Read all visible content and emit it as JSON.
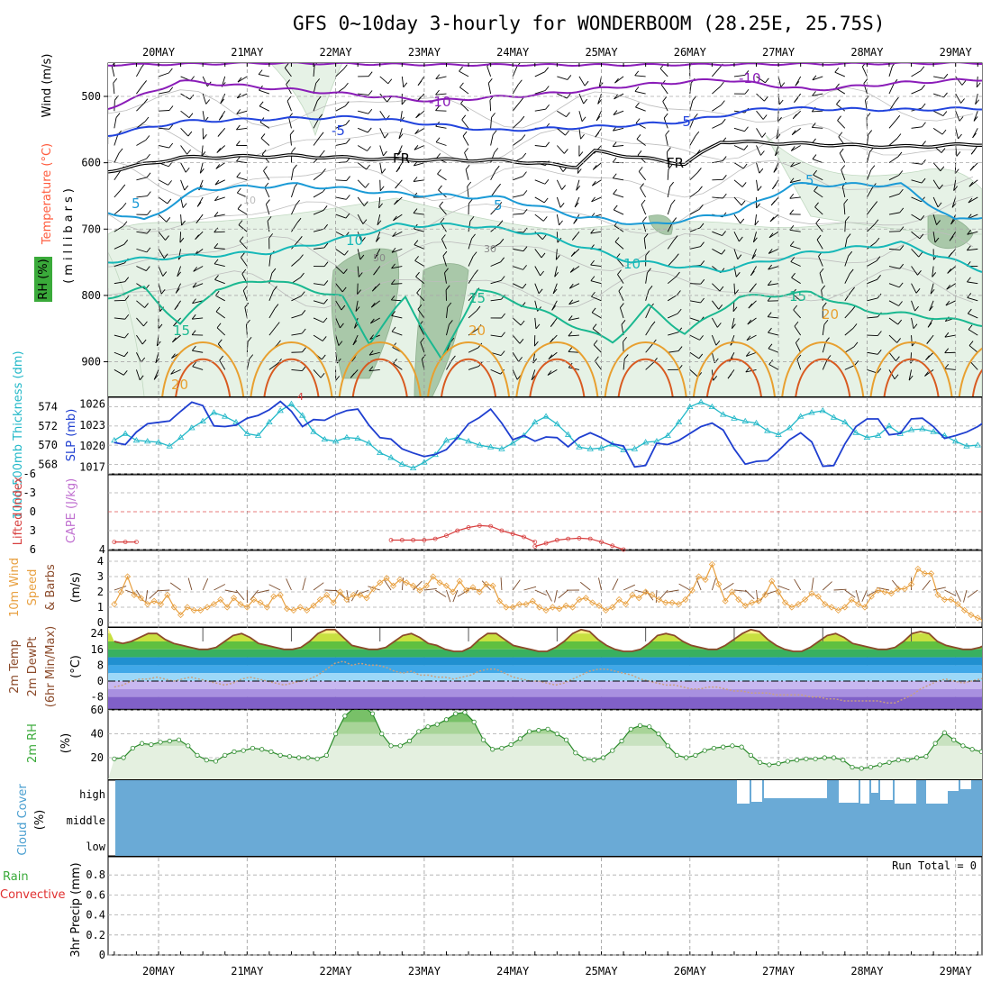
{
  "title": "GFS 0~10day 3-hourly for WONDERBOOM (28.25E, 25.75S)",
  "dates": [
    "20MAY",
    "21MAY",
    "22MAY",
    "23MAY",
    "24MAY",
    "25MAY",
    "26MAY",
    "27MAY",
    "28MAY",
    "29MAY"
  ],
  "run_total_label": "Run Total = 0",
  "panels": {
    "upper": {
      "labels": {
        "wind": "Wind (m/s)",
        "temp": "Temperature (°C)",
        "pressure": "(millibars)",
        "rh": "RH (%)"
      },
      "yticks": [
        "500",
        "600",
        "700",
        "800",
        "900"
      ],
      "contour_labels": [
        "-10",
        "-10",
        "-5",
        "-5",
        "FR",
        "FR",
        "5",
        "5",
        "5",
        "10",
        "10",
        "15",
        "15",
        "15",
        "20",
        "20",
        "20",
        "10",
        "50",
        "30",
        "4"
      ]
    },
    "thickness": {
      "labels": {
        "thickness": "1000-500mb Thickness (dm)",
        "slp": "SLP (mb)"
      },
      "left_ticks": [
        "574",
        "572",
        "570",
        "568"
      ],
      "right_ticks": [
        "1026",
        "1023",
        "1020",
        "1017"
      ]
    },
    "lifted": {
      "labels": {
        "li": "Lifted Index",
        "cape": "CAPE (J/kg)"
      },
      "left_ticks": [
        "-6",
        "-3",
        "0",
        "3",
        "6"
      ],
      "right_ticks": [
        "4"
      ]
    },
    "wind10m": {
      "labels": {
        "l1": "10m Wind",
        "l2": "Speed",
        "l3": "& Barbs",
        "unit": "(m/s)"
      },
      "ticks": [
        "4",
        "3",
        "2",
        "1",
        "0"
      ]
    },
    "temp2m": {
      "labels": {
        "l1": "2m Temp",
        "l2": "2m DewPt",
        "l3": "(6hr Min/Max)",
        "unit": "(°C)"
      },
      "ticks": [
        "24",
        "16",
        "8",
        "0",
        "-8"
      ]
    },
    "rh2m": {
      "labels": {
        "l1": "2m RH",
        "unit": "(%)"
      },
      "ticks": [
        "60",
        "40",
        "20"
      ]
    },
    "cloud": {
      "labels": {
        "l1": "Cloud Cover",
        "unit": "(%)"
      },
      "ticks": [
        "high",
        "middle",
        "low"
      ]
    },
    "precip": {
      "labels": {
        "l1": "Total / Rain",
        "l2": "Convective",
        "l3": "3hr Precip (mm)"
      },
      "ticks": [
        "0.8",
        "0.6",
        "0.4",
        "0.2",
        "0"
      ]
    }
  },
  "colors": {
    "thickness": "#22b8c8",
    "slp": "#1f3fd0",
    "lifted": "#d84040",
    "wind": "#e8a040",
    "rh_fill": "#40b040",
    "cloud": "#6aaad6",
    "temp_line": "#8b4a2a"
  },
  "chart_data": [
    {
      "type": "line",
      "title": "1000-500mb Thickness (dm) / SLP (mb)",
      "x_step_hours": 3,
      "series": [
        {
          "name": "1000-500mb Thickness (dm)",
          "values": [
            570.5,
            571.2,
            570.5,
            570.4,
            570.3,
            569.9,
            570.8,
            571.8,
            572.5,
            573.4,
            573.0,
            572.4,
            571.2,
            571.0,
            572.4,
            573.6,
            574.3,
            573.1,
            571.4,
            570.6,
            570.4,
            570.8,
            570.7,
            570.2,
            569.2,
            568.7,
            568.0,
            567.6,
            568.2,
            569.0,
            570.5,
            570.8,
            570.4,
            570.0,
            569.8,
            569.6,
            570.2,
            571.0,
            572.4,
            573.0,
            572.2,
            571.1,
            569.8,
            569.6,
            569.7,
            570.1,
            569.5,
            569.6,
            570.3,
            570.4,
            571.0,
            572.4,
            574.0,
            574.5,
            574.0,
            573.2,
            572.8,
            572.5,
            572.3,
            571.5,
            571.1,
            571.8,
            573.0,
            573.4,
            573.6,
            572.9,
            572.4,
            571.3,
            570.8,
            571.0,
            572.0,
            571.2,
            571.6,
            571.7,
            571.4,
            571.0,
            570.4,
            569.9,
            570.0
          ]
        },
        {
          "name": "SLP (mb)",
          "values": [
            1020.5,
            1020.2,
            1022.0,
            1023.2,
            1023.4,
            1023.6,
            1025.0,
            1026.3,
            1025.8,
            1022.9,
            1022.8,
            1023.0,
            1024.0,
            1024.4,
            1025.2,
            1026.4,
            1025.0,
            1022.8,
            1023.8,
            1023.7,
            1024.5,
            1025.1,
            1025.3,
            1023.0,
            1021.2,
            1021.0,
            1019.6,
            1019.0,
            1018.5,
            1018.8,
            1019.5,
            1021.2,
            1023.2,
            1024.1,
            1025.3,
            1023.3,
            1020.9,
            1021.5,
            1020.7,
            1021.3,
            1021.2,
            1019.9,
            1021.2,
            1021.9,
            1021.2,
            1020.3,
            1020.0,
            1017.0,
            1017.2,
            1020.4,
            1020.2,
            1020.8,
            1021.8,
            1022.8,
            1023.3,
            1022.3,
            1019.6,
            1017.4,
            1017.8,
            1017.9,
            1019.3,
            1020.9,
            1021.9,
            1020.6,
            1017.1,
            1017.2,
            1020.3,
            1022.8,
            1023.9,
            1023.9,
            1021.6,
            1021.8,
            1023.9,
            1024.0,
            1022.8,
            1021.1,
            1021.5,
            1022.0,
            1022.8,
            1023.9
          ]
        }
      ],
      "y_left_range": [
        567,
        575
      ],
      "y_right_range": [
        1016,
        1027
      ]
    },
    {
      "type": "line",
      "title": "Lifted Index",
      "series": [
        {
          "name": "Lifted Index",
          "segments": [
            {
              "start_hour": 0,
              "values": [
                4.8,
                4.8,
                4.8
              ]
            },
            {
              "start_hour": 75,
              "values": [
                4.5,
                4.5,
                4.5,
                4.5,
                4.3,
                3.8,
                3.0,
                2.5,
                2.2,
                2.3,
                3.0,
                3.5,
                4.0,
                4.8
              ]
            },
            {
              "start_hour": 114,
              "values": [
                5.5,
                5.0,
                4.5,
                4.3,
                4.2,
                4.3,
                4.8,
                5.4,
                6.0
              ]
            }
          ]
        }
      ],
      "y_range": [
        6,
        -6
      ]
    },
    {
      "type": "line",
      "title": "10m Wind Speed & Barbs (m/s)",
      "x_step_hours": 3,
      "values": [
        1.2,
        2.0,
        3.0,
        1.8,
        1.6,
        1.2,
        1.4,
        1.2,
        1.8,
        1.0,
        0.5,
        1.0,
        0.8,
        0.8,
        1.0,
        1.2,
        1.5,
        1.0,
        1.6,
        1.2,
        1.0,
        1.5,
        1.3,
        1.0,
        1.7,
        1.8,
        0.9,
        0.8,
        1.0,
        0.8,
        1.1,
        1.5,
        1.8,
        1.3,
        2.0,
        1.5,
        1.8,
        1.8,
        1.6,
        2.2,
        2.6,
        2.9,
        2.4,
        2.8,
        2.6,
        2.4,
        2.1,
        2.4,
        3.0,
        2.6,
        2.4,
        2.0,
        2.7,
        2.1,
        2.3,
        2.0,
        2.5,
        2.4,
        1.4,
        1.0,
        1.0,
        1.2,
        1.2,
        1.4,
        1.0,
        0.8,
        1.0,
        0.9,
        1.1,
        1.0,
        1.5,
        1.6,
        1.3,
        1.1,
        0.8,
        1.0,
        1.5,
        1.2,
        1.8,
        1.6,
        2.0,
        1.8,
        1.5,
        1.3,
        1.3,
        1.2,
        1.5,
        2.1,
        3.0,
        2.8,
        3.8,
        2.5,
        1.4,
        2.0,
        1.5,
        1.1,
        1.3,
        1.4,
        1.8,
        2.7,
        2.0,
        1.3,
        1.0,
        1.2,
        1.5,
        1.9,
        1.7,
        1.2,
        1.0,
        0.8,
        1.0,
        1.5,
        1.2,
        1.0,
        1.7,
        2.1,
        2.0,
        1.9,
        2.2,
        2.2,
        2.5,
        3.5,
        3.2,
        3.2,
        1.8,
        1.5,
        1.5,
        1.2,
        0.8,
        0.5,
        0.3,
        0.1,
        0.6,
        0.9,
        0.4,
        0.6,
        0.5,
        1.0,
        0.5
      ],
      "y_range": [
        0,
        4
      ]
    },
    {
      "type": "area",
      "title": "2m Temp / 2m DewPt (°C)",
      "x_step_hours": 3,
      "series": [
        {
          "name": "2m Temp",
          "values": [
            20,
            19,
            20,
            22,
            24,
            24,
            21,
            19,
            18,
            17,
            16,
            16,
            17,
            20,
            23,
            24,
            22,
            19,
            18,
            17,
            16,
            16,
            17,
            20,
            24,
            26,
            26,
            22,
            18,
            17,
            16,
            16,
            17,
            20,
            23,
            24,
            22,
            19,
            18,
            16,
            15,
            15,
            17,
            21,
            24,
            24,
            21,
            18,
            17,
            16,
            15,
            15,
            17,
            20,
            24,
            26,
            25,
            21,
            18,
            16,
            15,
            15,
            16,
            19,
            23,
            24,
            23,
            20,
            18,
            17,
            16,
            16,
            18,
            21,
            24,
            26,
            25,
            21,
            18,
            16,
            15,
            15,
            17,
            20,
            23,
            24,
            22,
            19,
            18,
            17,
            16,
            16,
            17,
            20,
            24,
            25,
            24,
            20,
            18,
            17,
            16,
            16,
            17,
            19,
            22,
            24,
            22,
            19,
            17,
            16,
            16,
            15,
            16
          ]
        },
        {
          "name": "2m DewPt",
          "values": [
            -3,
            -2,
            0,
            1,
            1,
            2,
            1,
            0,
            1,
            2,
            1,
            0,
            -1,
            -2,
            -1,
            1,
            2,
            1,
            0,
            -1,
            -2,
            -1,
            0,
            1,
            3,
            6,
            9,
            10,
            8,
            9,
            8,
            8,
            7,
            5,
            4,
            5,
            3,
            3,
            2,
            2,
            1,
            2,
            3,
            5,
            6,
            6,
            4,
            2,
            1,
            0,
            0,
            -1,
            -2,
            -1,
            1,
            3,
            5,
            6,
            6,
            5,
            4,
            3,
            1,
            0,
            -1,
            -2,
            -2,
            -3,
            -4,
            -4,
            -3,
            -3,
            -4,
            -5,
            -5,
            -6,
            -6,
            -6,
            -7,
            -7,
            -7,
            -7,
            -8,
            -8,
            -9,
            -9,
            -10,
            -10,
            -10,
            -10,
            -10,
            -11,
            -11,
            -9,
            -7,
            -4,
            -2,
            0,
            1,
            0,
            -1,
            0,
            1,
            2,
            2,
            3,
            3
          ]
        }
      ],
      "y_range": [
        -12,
        28
      ]
    },
    {
      "type": "area",
      "title": "2m RH (%)",
      "x_step_hours": 3,
      "values": [
        19,
        20,
        28,
        32,
        31,
        33,
        34,
        35,
        30,
        22,
        18,
        17,
        22,
        25,
        26,
        28,
        27,
        25,
        22,
        21,
        20,
        20,
        19,
        22,
        40,
        55,
        62,
        63,
        57,
        40,
        30,
        30,
        34,
        42,
        46,
        48,
        52,
        57,
        58,
        50,
        35,
        27,
        28,
        31,
        36,
        42,
        43,
        44,
        40,
        35,
        24,
        19,
        18,
        20,
        26,
        34,
        44,
        47,
        46,
        40,
        30,
        22,
        20,
        22,
        26,
        28,
        29,
        30,
        29,
        22,
        16,
        14,
        15,
        17,
        18,
        19,
        19,
        20,
        20,
        18,
        12,
        11,
        12,
        14,
        16,
        18,
        18,
        20,
        21,
        32,
        41,
        35,
        30,
        27,
        25,
        24,
        25,
        27,
        30,
        34,
        36,
        40,
        42,
        41
      ]
    },
    {
      "type": "bar",
      "title": "3hr Precip (mm)",
      "values": [],
      "y_range": [
        0,
        1
      ]
    }
  ]
}
